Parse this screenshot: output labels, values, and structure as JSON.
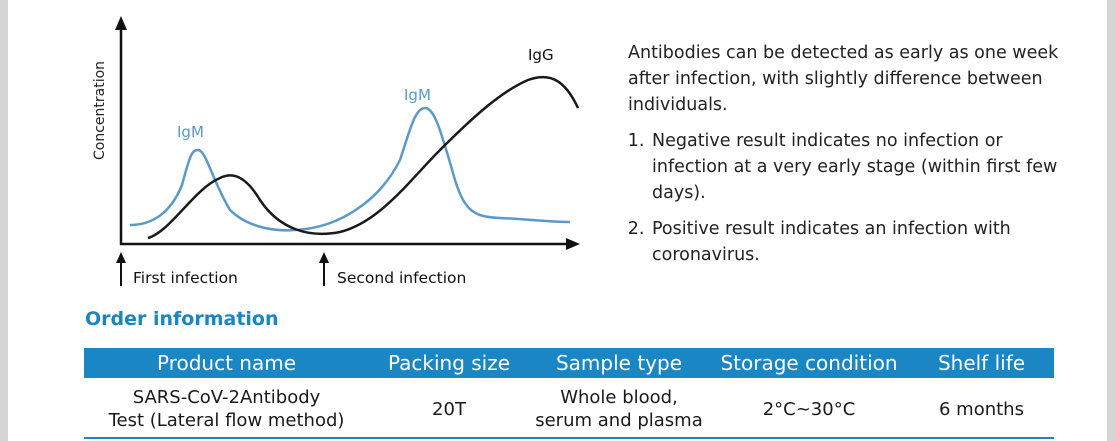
{
  "chart": {
    "ylabel": "Concentration",
    "labels": {
      "igm_first": "IgM",
      "igm_second": "IgM",
      "igg": "IgG"
    },
    "markers": {
      "first_infection": "First infection",
      "second_infection": "Second infection"
    },
    "colors": {
      "igm": "#5a9ac9",
      "igg": "#1a1a1a"
    }
  },
  "chart_data": {
    "type": "line",
    "title": "",
    "xlabel": "",
    "ylabel": "Concentration",
    "x": [
      0,
      5,
      10,
      15,
      20,
      25,
      30,
      35,
      40,
      45,
      50,
      55,
      60,
      65,
      70,
      75,
      80,
      85,
      90,
      95,
      100
    ],
    "series": [
      {
        "name": "IgM",
        "values": [
          5,
          10,
          60,
          25,
          8,
          5,
          8,
          15,
          30,
          55,
          78,
          60,
          15,
          10,
          8,
          7,
          6,
          6,
          6,
          5,
          5
        ]
      },
      {
        "name": "IgG",
        "values": [
          0,
          8,
          30,
          38,
          25,
          10,
          4,
          3,
          6,
          15,
          30,
          45,
          60,
          72,
          82,
          88,
          92,
          95,
          93,
          88,
          80
        ]
      }
    ],
    "ylim": [
      0,
      100
    ],
    "grid": false,
    "annotations": [
      "First infection",
      "Second infection"
    ]
  },
  "info": {
    "intro": "Antibodies can be detected as early as one week after infection, with slightly difference between individuals.",
    "items": [
      "Negative result indicates no infection or infection at a very early stage (within first few days).",
      "Positive result indicates an infection with coronavirus."
    ]
  },
  "order": {
    "heading": "Order information",
    "columns": [
      "Product name",
      "Packing size",
      "Sample type",
      "Storage condition",
      "Shelf life"
    ],
    "rows": [
      {
        "product_line1": "SARS-CoV-2Antibody",
        "product_line2": "Test (Lateral flow method)",
        "packing": "20T",
        "sample_line1": "Whole blood,",
        "sample_line2": "serum and plasma",
        "storage": "2°C~30°C",
        "shelf": "6 months"
      }
    ],
    "accent": "#1a87c4"
  }
}
